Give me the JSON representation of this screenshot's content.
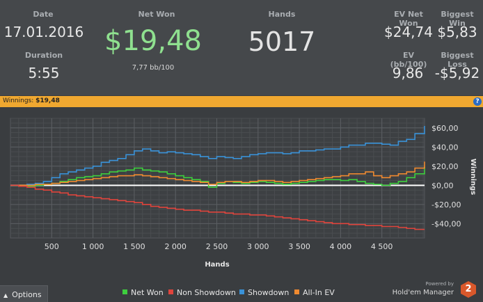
{
  "stats": {
    "date_label": "Date",
    "date_value": "17.01.2016",
    "duration_label": "Duration",
    "duration_value": "5:55",
    "net_won_label": "Net Won",
    "net_won_value": "$19,48",
    "net_won_sub": "7,77 bb/100",
    "hands_label": "Hands",
    "hands_value": "5017",
    "ev_net_won_label": "EV Net Won",
    "ev_net_won_value": "$24,74",
    "biggest_win_label": "Biggest Win",
    "biggest_win_value": "$5,83",
    "ev_bb100_label": "EV (bb/100)",
    "ev_bb100_value": "9,86",
    "biggest_loss_label": "Biggest Loss",
    "biggest_loss_value": "-$5,92"
  },
  "bar": {
    "label": "Winnings:",
    "value": "$19,48",
    "help": "?"
  },
  "colors": {
    "net_won": "#3ecf3e",
    "non_showdown": "#e0443c",
    "showdown": "#3a92d8",
    "all_in_ev": "#f08a30",
    "net_won_big": "#8fe08f",
    "accent_bar": "#f0a830"
  },
  "footer": {
    "options_label": "Options",
    "powered_by": "Powered by",
    "brand": "Hold'em Manager",
    "logo_text": "2"
  },
  "legend": [
    {
      "name": "Net Won",
      "color": "#3ecf3e"
    },
    {
      "name": "Non Showdown",
      "color": "#e0443c"
    },
    {
      "name": "Showdown",
      "color": "#3a92d8"
    },
    {
      "name": "All-In EV",
      "color": "#f08a30"
    }
  ],
  "chart_data": {
    "type": "line",
    "xlabel": "Hands",
    "ylabel": "Winnings",
    "xlim": [
      0,
      5017
    ],
    "ylim": [
      -55,
      70
    ],
    "x_ticks": [
      500,
      1000,
      1500,
      2000,
      2500,
      3000,
      3500,
      4000,
      4500
    ],
    "x_tick_labels": [
      "500",
      "1 000",
      "1 500",
      "2 000",
      "2 500",
      "3 000",
      "3 500",
      "4 000",
      "4 500"
    ],
    "y_ticks": [
      60,
      40,
      20,
      0,
      -20,
      -40
    ],
    "y_tick_labels": [
      "$60,00",
      "$40,00",
      "$20,00",
      "$0,00",
      "-$20,00",
      "-$40,00"
    ],
    "series": [
      {
        "name": "Showdown",
        "x": [
          0,
          100,
          200,
          300,
          400,
          500,
          600,
          700,
          800,
          900,
          1000,
          1100,
          1200,
          1300,
          1400,
          1500,
          1600,
          1700,
          1800,
          1900,
          2000,
          2100,
          2200,
          2300,
          2400,
          2500,
          2600,
          2700,
          2800,
          2900,
          3000,
          3100,
          3200,
          3300,
          3400,
          3500,
          3600,
          3700,
          3800,
          3900,
          4000,
          4100,
          4200,
          4300,
          4400,
          4500,
          4600,
          4700,
          4800,
          4900,
          5017
        ],
        "values": [
          0,
          0,
          1,
          2,
          4,
          8,
          12,
          14,
          16,
          18,
          20,
          24,
          26,
          28,
          32,
          36,
          38,
          36,
          34,
          35,
          34,
          33,
          32,
          30,
          28,
          30,
          29,
          28,
          30,
          32,
          33,
          34,
          34,
          33,
          34,
          36,
          36,
          37,
          38,
          38,
          40,
          42,
          42,
          44,
          44,
          43,
          42,
          46,
          48,
          54,
          62
        ]
      },
      {
        "name": "Net Won",
        "x": [
          0,
          100,
          200,
          300,
          400,
          500,
          600,
          700,
          800,
          900,
          1000,
          1100,
          1200,
          1300,
          1400,
          1500,
          1600,
          1700,
          1800,
          1900,
          2000,
          2100,
          2200,
          2300,
          2400,
          2500,
          2600,
          2700,
          2800,
          2900,
          3000,
          3100,
          3200,
          3300,
          3400,
          3500,
          3600,
          3700,
          3800,
          3900,
          4000,
          4100,
          4200,
          4300,
          4400,
          4500,
          4600,
          4700,
          4800,
          4900,
          5017
        ],
        "values": [
          0,
          0,
          -1,
          0,
          1,
          2,
          4,
          6,
          8,
          9,
          10,
          12,
          14,
          15,
          16,
          18,
          16,
          15,
          14,
          12,
          10,
          8,
          6,
          4,
          -2,
          2,
          4,
          3,
          2,
          3,
          4,
          3,
          2,
          1,
          2,
          3,
          4,
          5,
          6,
          6,
          5,
          6,
          4,
          2,
          1,
          0,
          2,
          4,
          8,
          12,
          19.48
        ]
      },
      {
        "name": "All-In EV",
        "x": [
          0,
          100,
          200,
          300,
          400,
          500,
          600,
          700,
          800,
          900,
          1000,
          1100,
          1200,
          1300,
          1400,
          1500,
          1600,
          1700,
          1800,
          1900,
          2000,
          2100,
          2200,
          2300,
          2400,
          2500,
          2600,
          2700,
          2800,
          2900,
          3000,
          3100,
          3200,
          3300,
          3400,
          3500,
          3600,
          3700,
          3800,
          3900,
          4000,
          4100,
          4200,
          4300,
          4400,
          4500,
          4600,
          4700,
          4800,
          4900,
          5017
        ],
        "values": [
          0,
          0,
          0,
          1,
          1,
          2,
          3,
          4,
          5,
          6,
          7,
          8,
          9,
          10,
          10,
          11,
          10,
          9,
          8,
          7,
          6,
          5,
          4,
          3,
          1,
          3,
          4,
          4,
          3,
          4,
          5,
          5,
          4,
          3,
          4,
          5,
          6,
          7,
          8,
          9,
          10,
          12,
          12,
          14,
          10,
          8,
          10,
          12,
          14,
          18,
          24.74
        ]
      },
      {
        "name": "Non Showdown",
        "x": [
          0,
          100,
          200,
          300,
          400,
          500,
          600,
          700,
          800,
          900,
          1000,
          1100,
          1200,
          1300,
          1400,
          1500,
          1600,
          1700,
          1800,
          1900,
          2000,
          2100,
          2200,
          2300,
          2400,
          2500,
          2600,
          2700,
          2800,
          2900,
          3000,
          3100,
          3200,
          3300,
          3400,
          3500,
          3600,
          3700,
          3800,
          3900,
          4000,
          4100,
          4200,
          4300,
          4400,
          4500,
          4600,
          4700,
          4800,
          4900,
          5017
        ],
        "values": [
          0,
          -1,
          -2,
          -4,
          -5,
          -7,
          -8,
          -10,
          -11,
          -12,
          -13,
          -14,
          -15,
          -16,
          -17,
          -18,
          -20,
          -22,
          -23,
          -24,
          -25,
          -26,
          -26,
          -27,
          -28,
          -28,
          -29,
          -30,
          -30,
          -31,
          -31,
          -32,
          -33,
          -34,
          -35,
          -36,
          -37,
          -38,
          -39,
          -40,
          -40,
          -41,
          -41,
          -42,
          -42,
          -43,
          -43,
          -44,
          -45,
          -46,
          -46
        ]
      }
    ]
  }
}
